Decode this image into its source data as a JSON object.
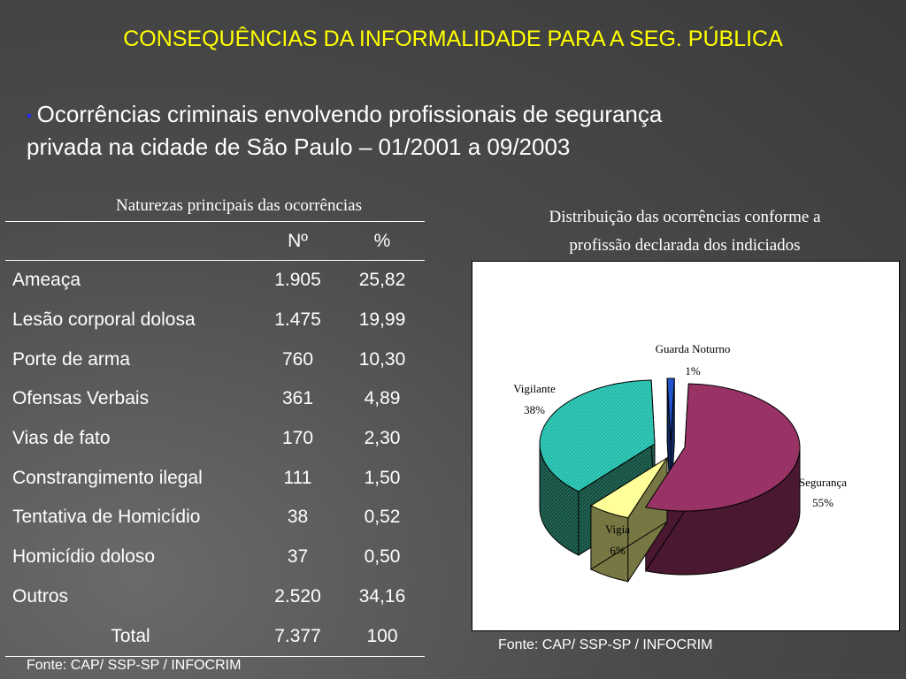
{
  "slide": {
    "title": "CONSEQUÊNCIAS DA INFORMALIDADE PARA A SEG. PÚBLICA",
    "bullet_marker": "▪",
    "bullet_line1": "Ocorrências criminais envolvendo profissionais de segurança",
    "bullet_line2": "privada na cidade de São Paulo – 01/2001 a 09/2003"
  },
  "table": {
    "caption": "Naturezas principais das ocorrências",
    "headers": [
      "",
      "Nº",
      "%"
    ],
    "rows": [
      {
        "name": "Ameaça",
        "num": "1.905",
        "pct": "25,82"
      },
      {
        "name": "Lesão corporal dolosa",
        "num": "1.475",
        "pct": "19,99"
      },
      {
        "name": "Porte de arma",
        "num": "760",
        "pct": "10,30"
      },
      {
        "name": "Ofensas Verbais",
        "num": "361",
        "pct": "4,89"
      },
      {
        "name": "Vias de fato",
        "num": "170",
        "pct": "2,30"
      },
      {
        "name": "Constrangimento ilegal",
        "num": "111",
        "pct": "1,50"
      },
      {
        "name": "Tentativa de Homicídio",
        "num": "38",
        "pct": "0,52"
      },
      {
        "name": "Homicídio doloso",
        "num": "37",
        "pct": "0,50"
      },
      {
        "name": "Outros",
        "num": "2.520",
        "pct": "34,16"
      }
    ],
    "total": {
      "name": "Total",
      "num": "7.377",
      "pct": "100"
    },
    "source": "Fonte: CAP/ SSP-SP / INFOCRIM"
  },
  "pie": {
    "title_line1": "Distribuição das ocorrências conforme a",
    "title_line2": "profissão declarada dos indiciados",
    "source": "Fonte: CAP/ SSP-SP / INFOCRIM"
  },
  "chart_data": {
    "type": "pie",
    "title": "Distribuição das ocorrências conforme a profissão declarada dos indiciados",
    "slices": [
      {
        "label": "Guarda Noturno",
        "value": 1,
        "value_label": "1%",
        "color": "#2255cc"
      },
      {
        "label": "Segurança",
        "value": 55,
        "value_label": "55%",
        "color": "#993366"
      },
      {
        "label": "Vigia",
        "value": 6,
        "value_label": "6%",
        "color": "#ffff99"
      },
      {
        "label": "Vigilante",
        "value": 38,
        "value_label": "38%",
        "color": "#33ccbb"
      }
    ]
  }
}
